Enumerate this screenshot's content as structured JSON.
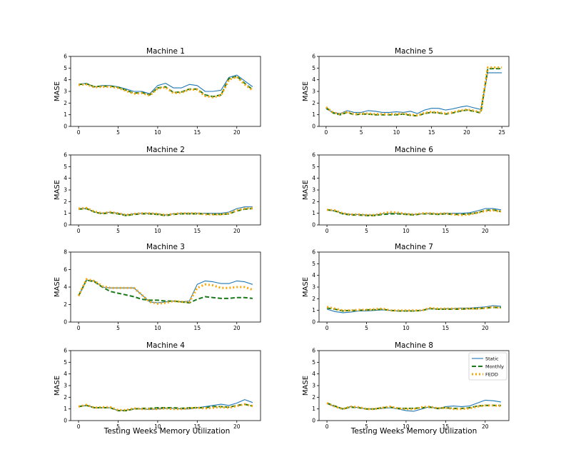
{
  "figure": {
    "xlabel": "Testing Weeks Memory Utilization",
    "ylabel": "MASE"
  },
  "colors": {
    "static": "#1f77b4",
    "monthly": "#1a7a1a",
    "fedd": "#ffa500"
  },
  "chart_data": [
    {
      "type": "line",
      "title": "Machine 1",
      "ylabel": "MASE",
      "x": [
        0,
        1,
        2,
        3,
        4,
        5,
        6,
        7,
        8,
        9,
        10,
        11,
        12,
        13,
        14,
        15,
        16,
        17,
        18,
        19,
        20,
        21,
        22
      ],
      "xticks": [
        0,
        5,
        10,
        15,
        20
      ],
      "yticks": [
        0,
        1,
        2,
        3,
        4,
        5,
        6
      ],
      "xlim": [
        -1,
        23
      ],
      "ylim": [
        0,
        6
      ],
      "series": [
        {
          "name": "Static",
          "values": [
            3.6,
            3.7,
            3.4,
            3.5,
            3.5,
            3.4,
            3.2,
            3.0,
            3.0,
            2.8,
            3.5,
            3.7,
            3.3,
            3.3,
            3.6,
            3.5,
            3.0,
            3.0,
            3.1,
            4.2,
            4.4,
            3.9,
            3.4
          ]
        },
        {
          "name": "Monthly",
          "values": [
            3.6,
            3.65,
            3.4,
            3.45,
            3.45,
            3.35,
            3.1,
            2.85,
            2.9,
            2.7,
            3.3,
            3.4,
            2.9,
            2.95,
            3.2,
            3.2,
            2.7,
            2.55,
            2.7,
            4.1,
            4.3,
            3.7,
            3.15
          ]
        },
        {
          "name": "FEDD",
          "values": [
            3.55,
            3.6,
            3.35,
            3.4,
            3.4,
            3.3,
            3.05,
            2.8,
            2.85,
            2.65,
            3.25,
            3.35,
            2.85,
            2.9,
            3.15,
            3.15,
            2.6,
            2.5,
            2.65,
            4.0,
            4.25,
            3.6,
            3.1
          ]
        }
      ]
    },
    {
      "type": "line",
      "title": "Machine 5",
      "ylabel": "MASE",
      "x": [
        0,
        1,
        2,
        3,
        4,
        5,
        6,
        7,
        8,
        9,
        10,
        11,
        12,
        13,
        14,
        15,
        16,
        17,
        18,
        19,
        20,
        21,
        22,
        23,
        24,
        25
      ],
      "xticks": [
        0,
        5,
        10,
        15,
        20,
        25
      ],
      "yticks": [
        0,
        1,
        2,
        3,
        4,
        5,
        6
      ],
      "xlim": [
        -1,
        26
      ],
      "ylim": [
        0,
        6
      ],
      "series": [
        {
          "name": "Static",
          "values": [
            1.5,
            1.2,
            1.1,
            1.35,
            1.2,
            1.2,
            1.35,
            1.3,
            1.2,
            1.2,
            1.25,
            1.2,
            1.3,
            1.1,
            1.4,
            1.55,
            1.55,
            1.4,
            1.5,
            1.65,
            1.75,
            1.6,
            1.45,
            4.6,
            4.6,
            4.6
          ]
        },
        {
          "name": "Monthly",
          "values": [
            1.6,
            1.15,
            1.0,
            1.2,
            1.0,
            1.05,
            1.05,
            1.0,
            1.0,
            1.0,
            1.0,
            1.05,
            0.95,
            0.9,
            1.1,
            1.2,
            1.15,
            1.05,
            1.15,
            1.3,
            1.4,
            1.3,
            1.15,
            4.95,
            4.95,
            4.95
          ]
        },
        {
          "name": "FEDD",
          "values": [
            1.65,
            1.2,
            1.05,
            1.25,
            1.05,
            1.1,
            1.1,
            1.05,
            1.05,
            1.05,
            1.05,
            1.1,
            1.0,
            0.95,
            1.15,
            1.25,
            1.2,
            1.1,
            1.2,
            1.35,
            1.45,
            1.35,
            1.2,
            5.05,
            5.05,
            5.05
          ]
        }
      ]
    },
    {
      "type": "line",
      "title": "Machine 2",
      "ylabel": "MASE",
      "x": [
        0,
        1,
        2,
        3,
        4,
        5,
        6,
        7,
        8,
        9,
        10,
        11,
        12,
        13,
        14,
        15,
        16,
        17,
        18,
        19,
        20,
        21,
        22
      ],
      "xticks": [
        0,
        5,
        10,
        15,
        20
      ],
      "yticks": [
        0,
        1,
        2,
        3,
        4,
        5,
        6
      ],
      "xlim": [
        -1,
        23
      ],
      "ylim": [
        0,
        6
      ],
      "series": [
        {
          "name": "Static",
          "values": [
            1.4,
            1.4,
            1.1,
            1.0,
            1.1,
            1.0,
            0.85,
            0.95,
            1.0,
            1.0,
            0.95,
            0.85,
            0.95,
            1.0,
            1.0,
            1.0,
            1.0,
            1.0,
            1.0,
            1.1,
            1.4,
            1.55,
            1.55
          ]
        },
        {
          "name": "Monthly",
          "values": [
            1.35,
            1.4,
            1.1,
            0.95,
            1.05,
            0.95,
            0.8,
            0.9,
            0.95,
            0.95,
            0.9,
            0.8,
            0.9,
            0.95,
            0.95,
            0.95,
            0.95,
            0.9,
            0.9,
            0.95,
            1.2,
            1.35,
            1.4
          ]
        },
        {
          "name": "FEDD",
          "values": [
            1.4,
            1.45,
            1.15,
            1.0,
            1.1,
            1.0,
            0.85,
            0.95,
            1.0,
            1.0,
            0.95,
            0.85,
            0.95,
            1.0,
            1.0,
            1.0,
            0.9,
            0.9,
            0.9,
            1.0,
            1.25,
            1.4,
            1.45
          ]
        }
      ]
    },
    {
      "type": "line",
      "title": "Machine 6",
      "ylabel": "MASE",
      "x": [
        0,
        1,
        2,
        3,
        4,
        5,
        6,
        7,
        8,
        9,
        10,
        11,
        12,
        13,
        14,
        15,
        16,
        17,
        18,
        19,
        20,
        21,
        22
      ],
      "xticks": [
        0,
        5,
        10,
        15,
        20
      ],
      "yticks": [
        0,
        1,
        2,
        3,
        4,
        5,
        6
      ],
      "xlim": [
        -1,
        23
      ],
      "ylim": [
        0,
        6
      ],
      "series": [
        {
          "name": "Static",
          "values": [
            1.3,
            1.2,
            1.0,
            0.9,
            0.9,
            0.85,
            0.85,
            0.95,
            1.0,
            1.0,
            0.95,
            0.9,
            0.95,
            1.0,
            0.95,
            1.0,
            1.0,
            1.0,
            1.05,
            1.2,
            1.4,
            1.4,
            1.3
          ]
        },
        {
          "name": "Monthly",
          "values": [
            1.3,
            1.2,
            0.95,
            0.85,
            0.85,
            0.8,
            0.8,
            0.9,
            0.95,
            0.95,
            0.9,
            0.85,
            0.95,
            0.95,
            0.9,
            0.95,
            0.9,
            0.9,
            0.95,
            1.05,
            1.25,
            1.3,
            1.15
          ]
        },
        {
          "name": "FEDD",
          "values": [
            1.3,
            1.25,
            1.0,
            0.9,
            0.9,
            0.85,
            0.85,
            1.0,
            1.1,
            1.05,
            0.95,
            0.9,
            1.0,
            1.0,
            0.95,
            1.0,
            0.9,
            0.85,
            0.9,
            1.05,
            1.2,
            1.25,
            1.15
          ]
        }
      ]
    },
    {
      "type": "line",
      "title": "Machine 3",
      "ylabel": "MASE",
      "x": [
        0,
        1,
        2,
        3,
        4,
        5,
        6,
        7,
        8,
        9,
        10,
        11,
        12,
        13,
        14,
        15,
        16,
        17,
        18,
        19,
        20,
        21,
        22
      ],
      "xticks": [
        0,
        5,
        10,
        15,
        20
      ],
      "yticks": [
        0,
        2,
        4,
        6,
        8
      ],
      "xlim": [
        -1,
        23
      ],
      "ylim": [
        0,
        8
      ],
      "series": [
        {
          "name": "Static",
          "values": [
            3.0,
            4.8,
            4.7,
            4.0,
            3.9,
            3.9,
            3.9,
            3.9,
            3.1,
            2.3,
            2.2,
            2.3,
            2.4,
            2.3,
            2.4,
            4.3,
            4.7,
            4.6,
            4.4,
            4.4,
            4.7,
            4.6,
            4.3
          ]
        },
        {
          "name": "Monthly",
          "values": [
            3.0,
            4.8,
            4.6,
            4.0,
            3.5,
            3.3,
            3.1,
            2.9,
            2.6,
            2.5,
            2.5,
            2.4,
            2.4,
            2.3,
            2.2,
            2.6,
            2.9,
            2.8,
            2.7,
            2.7,
            2.8,
            2.8,
            2.7
          ]
        },
        {
          "name": "FEDD",
          "values": [
            3.0,
            4.9,
            4.7,
            4.1,
            3.9,
            3.9,
            3.9,
            3.9,
            3.1,
            2.3,
            2.1,
            2.2,
            2.4,
            2.3,
            2.3,
            3.9,
            4.3,
            4.2,
            3.9,
            3.9,
            4.0,
            4.0,
            3.7
          ]
        }
      ]
    },
    {
      "type": "line",
      "title": "Machine 7",
      "ylabel": "MASE",
      "x": [
        0,
        1,
        2,
        3,
        4,
        5,
        6,
        7,
        8,
        9,
        10,
        11,
        12,
        13,
        14,
        15,
        16,
        17,
        18,
        19,
        20,
        21,
        22
      ],
      "xticks": [
        0,
        5,
        10,
        15,
        20
      ],
      "yticks": [
        0,
        1,
        2,
        3,
        4,
        5,
        6
      ],
      "xlim": [
        -1,
        23
      ],
      "ylim": [
        0,
        6
      ],
      "series": [
        {
          "name": "Static",
          "values": [
            1.1,
            0.9,
            0.8,
            0.85,
            0.95,
            0.95,
            1.0,
            1.05,
            1.0,
            0.95,
            0.95,
            0.95,
            1.0,
            1.15,
            1.1,
            1.15,
            1.15,
            1.2,
            1.2,
            1.25,
            1.3,
            1.4,
            1.35
          ]
        },
        {
          "name": "Monthly",
          "values": [
            1.2,
            1.1,
            0.95,
            1.0,
            1.0,
            1.05,
            1.05,
            1.1,
            1.0,
            0.95,
            0.95,
            0.95,
            1.0,
            1.15,
            1.1,
            1.1,
            1.1,
            1.1,
            1.15,
            1.15,
            1.2,
            1.25,
            1.25
          ]
        },
        {
          "name": "FEDD",
          "values": [
            1.3,
            1.15,
            1.0,
            1.0,
            1.05,
            1.05,
            1.1,
            1.15,
            1.0,
            1.0,
            1.0,
            1.0,
            1.0,
            1.2,
            1.15,
            1.15,
            1.15,
            1.15,
            1.15,
            1.15,
            1.2,
            1.3,
            1.2
          ]
        }
      ]
    },
    {
      "type": "line",
      "title": "Machine 4",
      "ylabel": "MASE",
      "x": [
        0,
        1,
        2,
        3,
        4,
        5,
        6,
        7,
        8,
        9,
        10,
        11,
        12,
        13,
        14,
        15,
        16,
        17,
        18,
        19,
        20,
        21,
        22
      ],
      "xticks": [
        0,
        5,
        10,
        15,
        20
      ],
      "yticks": [
        0,
        1,
        2,
        3,
        4,
        5,
        6
      ],
      "xlim": [
        -1,
        23
      ],
      "ylim": [
        0,
        6
      ],
      "series": [
        {
          "name": "Static",
          "values": [
            1.2,
            1.3,
            1.1,
            1.1,
            1.1,
            0.85,
            0.9,
            1.0,
            1.0,
            0.95,
            1.0,
            1.05,
            1.05,
            1.0,
            1.0,
            1.1,
            1.2,
            1.3,
            1.4,
            1.3,
            1.5,
            1.8,
            1.55
          ]
        },
        {
          "name": "Monthly",
          "values": [
            1.2,
            1.3,
            1.1,
            1.1,
            1.1,
            0.85,
            0.85,
            1.0,
            1.05,
            1.05,
            1.1,
            1.1,
            1.1,
            1.05,
            1.1,
            1.1,
            1.1,
            1.2,
            1.2,
            1.15,
            1.3,
            1.4,
            1.25
          ]
        },
        {
          "name": "FEDD",
          "values": [
            1.2,
            1.35,
            1.1,
            1.15,
            1.15,
            0.9,
            0.9,
            1.05,
            1.0,
            1.0,
            1.0,
            1.05,
            1.0,
            1.0,
            1.05,
            1.1,
            1.05,
            1.1,
            1.15,
            1.1,
            1.25,
            1.4,
            1.25
          ]
        }
      ]
    },
    {
      "type": "line",
      "title": "Machine 8",
      "ylabel": "MASE",
      "x": [
        0,
        1,
        2,
        3,
        4,
        5,
        6,
        7,
        8,
        9,
        10,
        11,
        12,
        13,
        14,
        15,
        16,
        17,
        18,
        19,
        20,
        21,
        22
      ],
      "xticks": [
        0,
        5,
        10,
        15,
        20
      ],
      "yticks": [
        0,
        1,
        2,
        3,
        4,
        5,
        6
      ],
      "xlim": [
        -1,
        23
      ],
      "ylim": [
        0,
        6
      ],
      "legend": {
        "position": "upper-right",
        "entries": [
          "Static",
          "Monthly",
          "FEDD"
        ]
      },
      "series": [
        {
          "name": "Static",
          "values": [
            1.45,
            1.2,
            1.0,
            1.2,
            1.1,
            1.0,
            1.0,
            1.05,
            1.1,
            1.0,
            0.85,
            0.8,
            1.0,
            1.2,
            1.0,
            1.2,
            1.25,
            1.2,
            1.25,
            1.5,
            1.75,
            1.7,
            1.6
          ]
        },
        {
          "name": "Monthly",
          "values": [
            1.5,
            1.25,
            1.0,
            1.15,
            1.1,
            1.0,
            1.0,
            1.1,
            1.15,
            1.05,
            1.05,
            1.05,
            1.1,
            1.15,
            1.05,
            1.1,
            1.05,
            1.05,
            1.1,
            1.25,
            1.3,
            1.3,
            1.3
          ]
        },
        {
          "name": "FEDD",
          "values": [
            1.5,
            1.2,
            1.0,
            1.2,
            1.15,
            1.0,
            1.0,
            1.1,
            1.2,
            1.05,
            1.0,
            1.0,
            1.15,
            1.2,
            1.05,
            1.1,
            1.0,
            1.0,
            1.05,
            1.2,
            1.3,
            1.3,
            1.25
          ]
        }
      ]
    }
  ]
}
